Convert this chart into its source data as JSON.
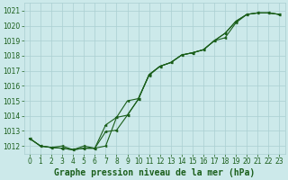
{
  "xlabel": "Graphe pression niveau de la mer (hPa)",
  "x": [
    0,
    1,
    2,
    3,
    4,
    5,
    6,
    7,
    8,
    9,
    10,
    11,
    12,
    13,
    14,
    15,
    16,
    17,
    18,
    19,
    20,
    21,
    22,
    23
  ],
  "line1": [
    1012.5,
    1012.0,
    1011.9,
    1011.85,
    1011.75,
    1011.85,
    1011.85,
    1012.95,
    1013.05,
    1014.05,
    1015.1,
    1016.75,
    1017.3,
    1017.55,
    1018.05,
    1018.2,
    1018.4,
    1019.0,
    1019.2,
    1020.2,
    1020.75,
    1020.85,
    1020.85,
    1020.75
  ],
  "line2": [
    1012.5,
    1012.0,
    1011.9,
    1012.0,
    1011.75,
    1012.0,
    1011.85,
    1012.0,
    1013.9,
    1015.0,
    1015.15,
    1016.7,
    1017.3,
    1017.55,
    1018.05,
    1018.2,
    1018.4,
    1019.0,
    1019.5,
    1020.3,
    1020.75,
    1020.85,
    1020.85,
    1020.75
  ],
  "line3": [
    1012.5,
    1012.0,
    1011.9,
    1011.85,
    1011.75,
    1011.85,
    1011.85,
    1013.4,
    1013.9,
    1014.05,
    1015.1,
    1016.75,
    1017.3,
    1017.55,
    1018.05,
    1018.2,
    1018.4,
    1019.0,
    1019.5,
    1020.3,
    1020.75,
    1020.85,
    1020.85,
    1020.75
  ],
  "bg_color": "#cce9ea",
  "grid_major_color": "#aacfd1",
  "grid_minor_color": "#bbdadc",
  "line_color": "#1a5e1a",
  "marker_color": "#1a5e1a",
  "ylim": [
    1011.5,
    1021.5
  ],
  "yticks": [
    1012,
    1013,
    1014,
    1015,
    1016,
    1017,
    1018,
    1019,
    1020,
    1021
  ],
  "xticks": [
    0,
    1,
    2,
    3,
    4,
    5,
    6,
    7,
    8,
    9,
    10,
    11,
    12,
    13,
    14,
    15,
    16,
    17,
    18,
    19,
    20,
    21,
    22,
    23
  ],
  "xlabel_color": "#1a5e1a",
  "xlabel_fontsize": 7.0,
  "tick_fontsize": 5.5,
  "tick_color": "#1a5e1a",
  "figsize": [
    3.2,
    2.0
  ],
  "dpi": 100
}
